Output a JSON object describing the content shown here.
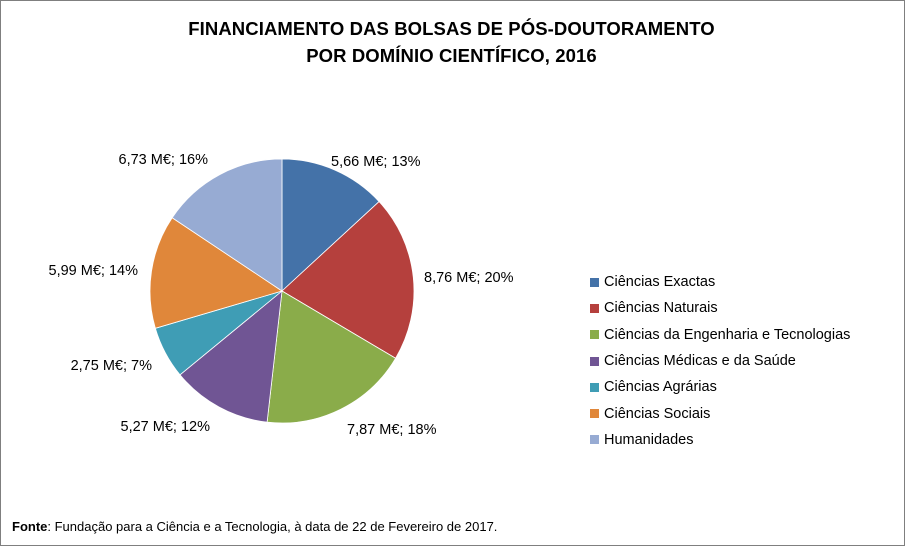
{
  "chart_data": {
    "type": "pie",
    "title_line1": "FINANCIAMENTO DAS BOLSAS DE PÓS-DOUTORAMENTO",
    "title_line2": "POR DOMÍNIO CIENTÍFICO, 2016",
    "unit": "M€",
    "slices": [
      {
        "name": "Ciências Exactas",
        "value": 5.66,
        "label": "5,66 M€; 13%",
        "color": "#4472a8"
      },
      {
        "name": "Ciências Naturais",
        "value": 8.76,
        "label": "8,76 M€; 20%",
        "color": "#b5403d"
      },
      {
        "name": "Ciências da Engenharia e Tecnologias",
        "value": 7.87,
        "label": "7,87 M€; 18%",
        "color": "#8aac4a"
      },
      {
        "name": "Ciências Médicas e da Saúde",
        "value": 5.27,
        "label": "5,27 M€; 12%",
        "color": "#705594"
      },
      {
        "name": "Ciências Agrárias",
        "value": 2.75,
        "label": "2,75 M€; 7%",
        "color": "#3f9db5"
      },
      {
        "name": "Ciências Sociais",
        "value": 5.99,
        "label": "5,99 M€; 14%",
        "color": "#e0873a"
      },
      {
        "name": "Humanidades",
        "value": 6.73,
        "label": "6,73 M€; 16%",
        "color": "#97abd3"
      }
    ],
    "legend_position": "right"
  },
  "source": {
    "label": "Fonte",
    "text": ": Fundação para a Ciência e a Tecnologia, à data de 22 de Fevereiro de 2017."
  }
}
